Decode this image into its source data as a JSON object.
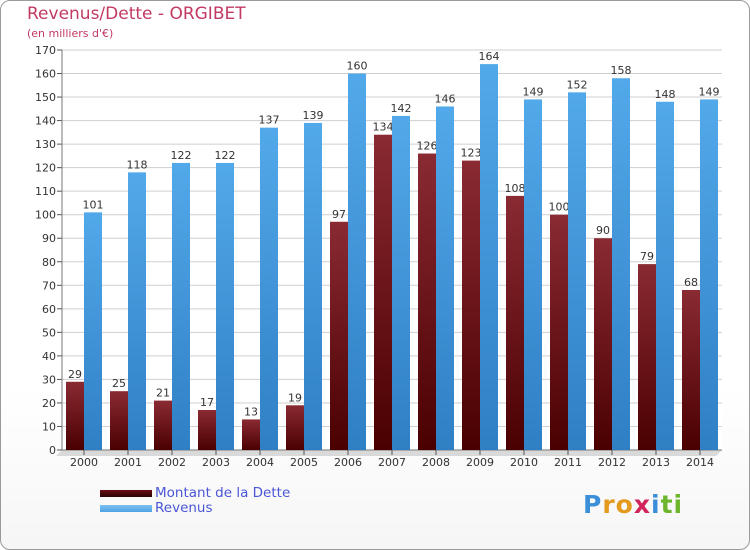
{
  "header": {
    "title": "Revenus/Dette - ORGIBET",
    "subtitle": "(en milliers d'€)"
  },
  "chart_data": {
    "type": "bar",
    "title": "Revenus/Dette - ORGIBET",
    "ylabel": "",
    "xlabel": "",
    "ylim": [
      0,
      170
    ],
    "ytick_step": 10,
    "grid": true,
    "legend_position": "bottom-left",
    "categories": [
      "2000",
      "2001",
      "2002",
      "2003",
      "2004",
      "2005",
      "2006",
      "2007",
      "2008",
      "2009",
      "2010",
      "2011",
      "2012",
      "2013",
      "2014"
    ],
    "series": [
      {
        "name": "Montant de la Dette",
        "color": "#7a1e26",
        "values": [
          29,
          25,
          21,
          17,
          13,
          19,
          97,
          134,
          126,
          123,
          108,
          100,
          90,
          79,
          68
        ]
      },
      {
        "name": "Revenus",
        "color": "#4da3e6",
        "values": [
          101,
          118,
          122,
          122,
          137,
          139,
          160,
          142,
          146,
          164,
          149,
          152,
          158,
          148,
          149
        ]
      }
    ]
  },
  "legend": {
    "items": [
      {
        "label": "Montant de la Dette",
        "color": "#6b0f16"
      },
      {
        "label": "Revenus",
        "color": "#4da3e6"
      }
    ]
  },
  "logo": {
    "letters": [
      "P",
      "r",
      "o",
      "x",
      "i",
      "t",
      "i"
    ],
    "colors": [
      "#3b8fd9",
      "#e39a1f",
      "#e39a1f",
      "#d2245a",
      "#3b8fd9",
      "#6cb52c",
      "#6cb52c"
    ]
  }
}
